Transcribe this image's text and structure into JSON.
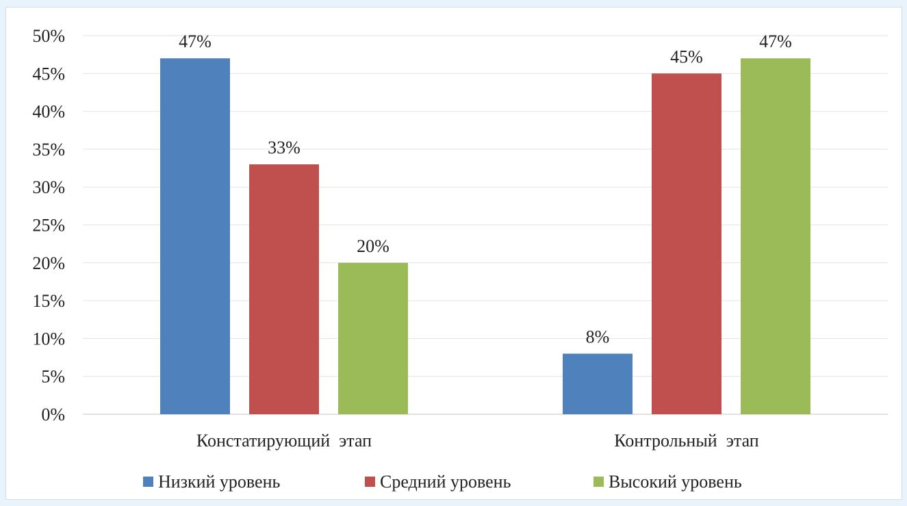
{
  "chart_data": {
    "type": "bar",
    "categories": [
      "Констатирующий  этап",
      "Контрольный  этап"
    ],
    "series": [
      {
        "name": "Низкий уровень",
        "values": [
          47,
          8
        ],
        "color": "#4f81bd",
        "labels": [
          "47%",
          "8%"
        ]
      },
      {
        "name": "Средний уровень",
        "values": [
          33,
          45
        ],
        "color": "#c0504d",
        "labels": [
          "33%",
          "45%"
        ]
      },
      {
        "name": "Высокий уровень",
        "values": [
          20,
          47
        ],
        "color": "#9bbb59",
        "labels": [
          "20%",
          "47%"
        ]
      }
    ],
    "yticks": [
      "0%",
      "5%",
      "10%",
      "15%",
      "20%",
      "25%",
      "30%",
      "35%",
      "40%",
      "45%",
      "50%"
    ],
    "ylim": [
      0,
      50
    ],
    "grid": true,
    "legend_position": "bottom"
  }
}
